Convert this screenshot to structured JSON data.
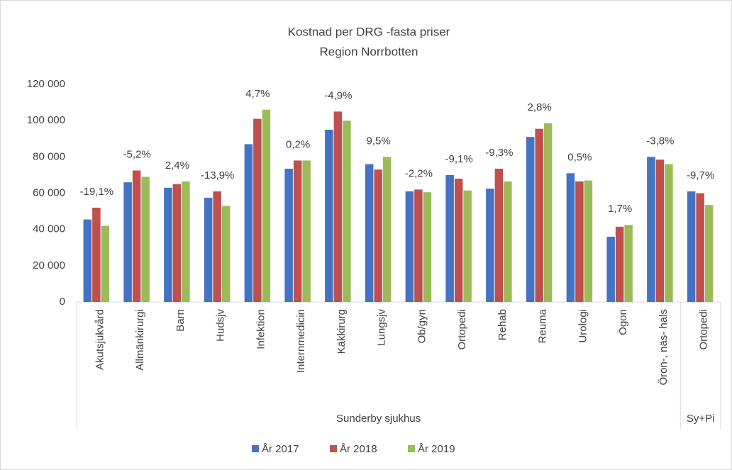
{
  "chart_data": {
    "type": "bar",
    "title": "Kostnad per DRG -fasta priser",
    "subtitle": "Region Norrbotten",
    "groups": [
      {
        "name": "Sunderby sjukhus",
        "categories": [
          "Akutsjukvård",
          "Allmänkirurgi",
          "Barn",
          "Hudsjv",
          "Infektion",
          "Internmedicin",
          "Käkkirurg",
          "Lungsjv",
          "Ob/gyn",
          "Ortopedi",
          "Rehab",
          "Reuma",
          "Urologi",
          "Ögon",
          "Öron-, näs- hals"
        ]
      },
      {
        "name": "Sy+Pi",
        "categories": [
          "Ortopedi"
        ]
      }
    ],
    "series": [
      {
        "name": "År 2017",
        "color": "#4472c4",
        "values": [
          45500,
          66000,
          63000,
          57500,
          87000,
          73500,
          95000,
          76000,
          61000,
          70000,
          62500,
          91000,
          71000,
          36000,
          80000,
          61000
        ]
      },
      {
        "name": "År 2018",
        "color": "#c0504d",
        "values": [
          52000,
          72500,
          65000,
          61000,
          101000,
          78000,
          105000,
          73000,
          62000,
          68000,
          73500,
          95500,
          66500,
          41500,
          78500,
          60000
        ]
      },
      {
        "name": "År 2019",
        "color": "#9bbb59",
        "values": [
          42000,
          69000,
          66500,
          53000,
          106000,
          78000,
          100000,
          80000,
          60500,
          61500,
          66500,
          98500,
          67000,
          42500,
          76000,
          53500
        ]
      }
    ],
    "annotations": [
      "-19,1%",
      "-5,2%",
      "2,4%",
      "-13,9%",
      "4,7%",
      "0,2%",
      "-4,9%",
      "9,5%",
      "-2,2%",
      "-9,1%",
      "-9,3%",
      "2,8%",
      "0,5%",
      "1,7%",
      "-3,8%",
      "-9,7%"
    ],
    "ylim": [
      0,
      120000
    ],
    "yticks": [
      0,
      {
        "value": 20000,
        "label": "20 000"
      },
      {
        "value": 40000,
        "label": "40 000"
      },
      {
        "value": 60000,
        "label": "60 000"
      },
      {
        "value": 80000,
        "label": "80 000"
      },
      {
        "value": 100000,
        "label": "100 000"
      },
      {
        "value": 120000,
        "label": "120 000"
      }
    ],
    "grid": false,
    "legend": "bottom"
  }
}
